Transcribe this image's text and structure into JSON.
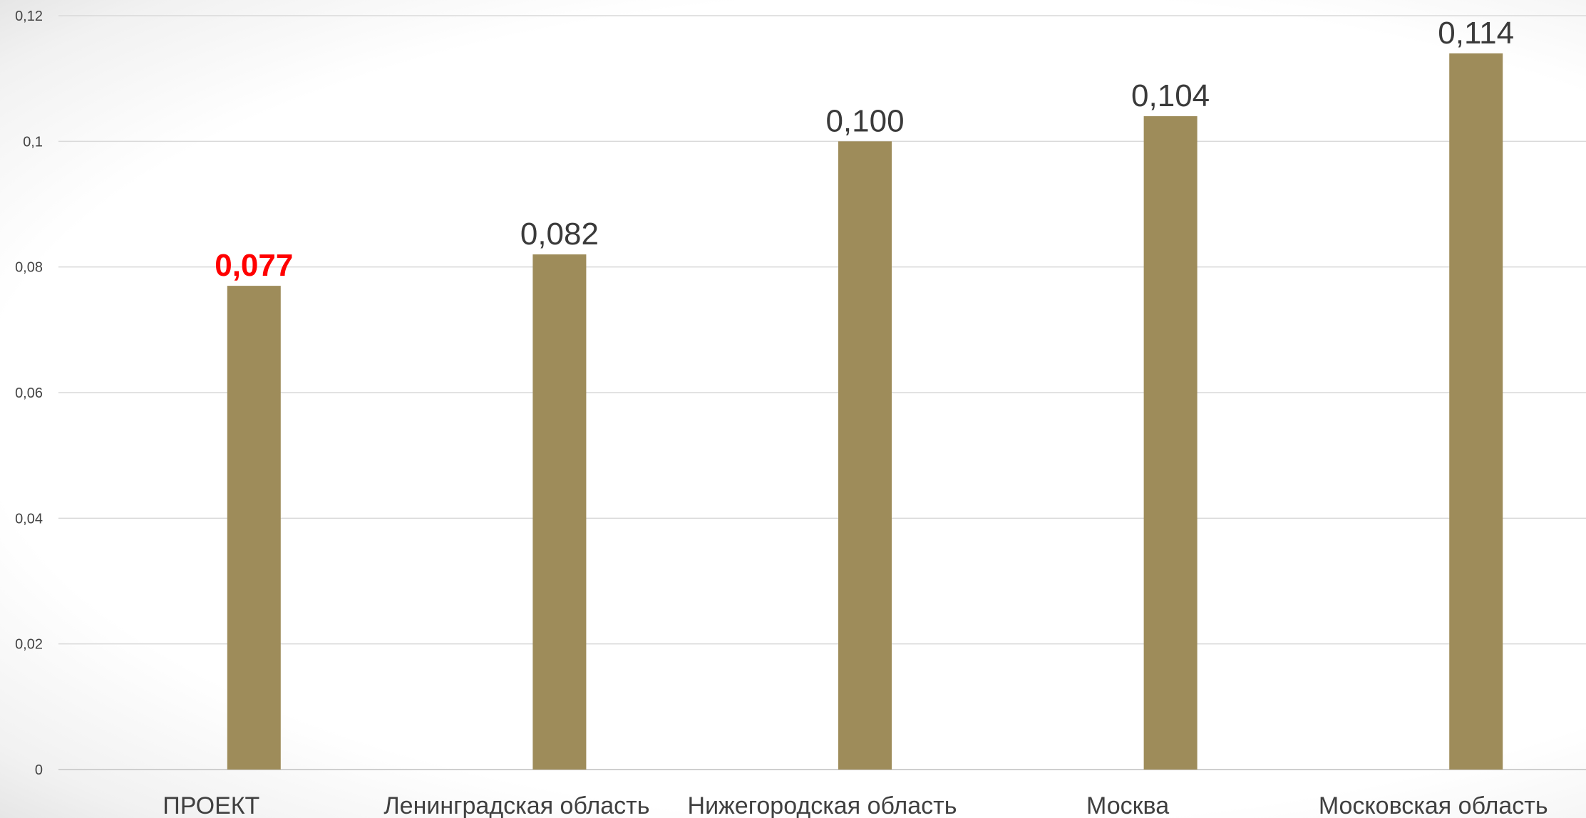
{
  "chart_data": {
    "type": "bar",
    "categories": [
      "ПРОЕКТ",
      "Ленинградская область",
      "Нижегородская область",
      "Москва",
      "Московская область"
    ],
    "values": [
      0.077,
      0.082,
      0.1,
      0.104,
      0.114
    ],
    "data_labels": [
      "0,077",
      "0,082",
      "0,100",
      "0,104",
      "0,114"
    ],
    "highlight_index": 0,
    "highlight_color": "#ff0000",
    "bar_color": "#9e8c5a",
    "ylim": [
      0,
      0.12
    ],
    "yticks": [
      0,
      0.02,
      0.04,
      0.06,
      0.08,
      0.1,
      0.12
    ],
    "ytick_labels": [
      "0",
      "0,02",
      "0,04",
      "0,06",
      "0,08",
      "0,1",
      "0,12"
    ],
    "grid": true,
    "legend": "none",
    "title": "",
    "xlabel": "",
    "ylabel": ""
  }
}
